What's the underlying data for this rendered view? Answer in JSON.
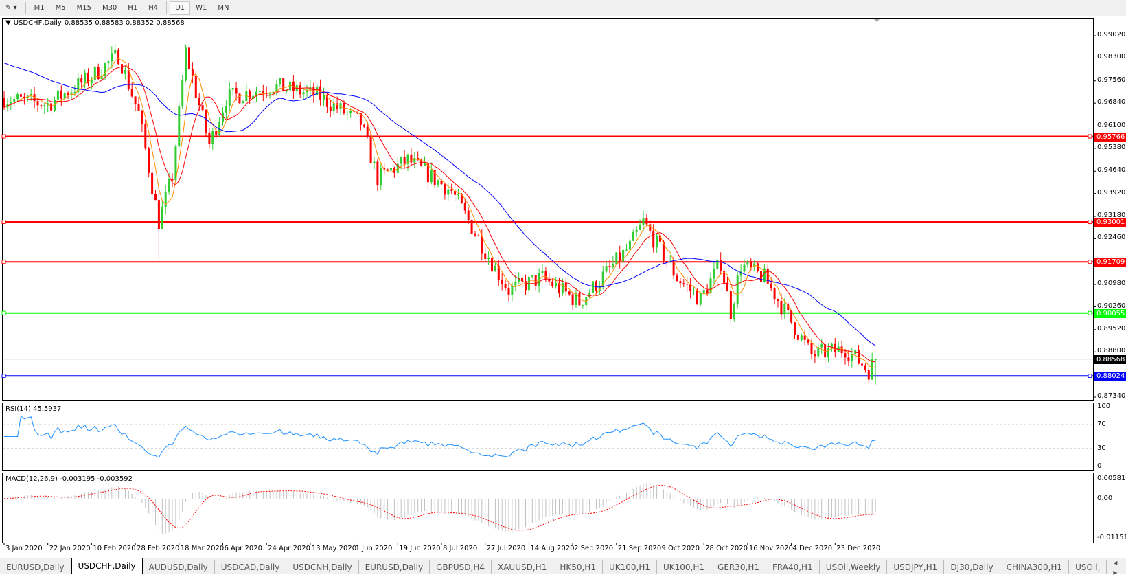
{
  "toolbar": {
    "timeframes": [
      "M1",
      "M5",
      "M15",
      "M30",
      "H1",
      "H4",
      "D1",
      "W1",
      "MN"
    ],
    "active": "D1"
  },
  "chart": {
    "symbol": "USDCHF,Daily",
    "ohlc": "0.88535 0.88583 0.88352 0.88568",
    "rsi_label": "RSI(14) 45.5937",
    "macd_label": "MACD(12,26,9) -0.003195 -0.003592"
  },
  "price_axis": [
    "0.99020",
    "0.98300",
    "0.97560",
    "0.96840",
    "0.96100",
    "0.95380",
    "0.94640",
    "0.93920",
    "0.93180",
    "0.92460",
    "0.90980",
    "0.90260",
    "0.89520",
    "0.88800",
    "0.87340"
  ],
  "rsi_axis": [
    "100",
    "70",
    "30",
    "0"
  ],
  "macd_axis": [
    "0.005818",
    "0.00",
    "-0.011514"
  ],
  "levels": [
    {
      "price": "0.95766",
      "color": "#ff0000"
    },
    {
      "price": "0.93001",
      "color": "#ff0000"
    },
    {
      "price": "0.91709",
      "color": "#ff0000"
    },
    {
      "price": "0.90055",
      "color": "#00ff00"
    },
    {
      "price": "0.88024",
      "color": "#0000ff"
    }
  ],
  "current_price": "0.88568",
  "x_axis": [
    "3 Jan 2020",
    "22 Jan 2020",
    "10 Feb 2020",
    "28 Feb 2020",
    "18 Mar 2020",
    "6 Apr 2020",
    "24 Apr 2020",
    "13 May 2020",
    "1 Jun 2020",
    "19 Jun 2020",
    "8 Jul 2020",
    "27 Jul 2020",
    "14 Aug 2020",
    "2 Sep 2020",
    "21 Sep 2020",
    "9 Oct 2020",
    "28 Oct 2020",
    "16 Nov 2020",
    "4 Dec 2020",
    "23 Dec 2020"
  ],
  "tabs": [
    "EURUSD,Daily",
    "USDCHF,Daily",
    "AUDUSD,Daily",
    "USDCAD,Daily",
    "USDCNH,Daily",
    "EURUSD,Daily",
    "GBPUSD,H4",
    "XAUUSD,H1",
    "HK50,H1",
    "UK100,H1",
    "UK100,H1",
    "GER30,H1",
    "FRA40,H1",
    "USOil,Weekly",
    "USDJPY,H1",
    "DJ30,Daily",
    "CHINA300,H1",
    "USOil,"
  ],
  "active_tab": "USDCHF,Daily",
  "chart_data": {
    "type": "candlestick",
    "price_path_approx": [
      [
        "2020-01-03",
        0.97
      ],
      [
        "2020-01-22",
        0.968
      ],
      [
        "2020-02-10",
        0.977
      ],
      [
        "2020-02-20",
        0.984
      ],
      [
        "2020-02-28",
        0.965
      ],
      [
        "2020-03-09",
        0.93
      ],
      [
        "2020-03-13",
        0.945
      ],
      [
        "2020-03-19",
        0.985
      ],
      [
        "2020-03-24",
        0.972
      ],
      [
        "2020-03-30",
        0.955
      ],
      [
        "2020-04-06",
        0.97
      ],
      [
        "2020-04-24",
        0.974
      ],
      [
        "2020-05-13",
        0.971
      ],
      [
        "2020-06-01",
        0.962
      ],
      [
        "2020-06-08",
        0.944
      ],
      [
        "2020-06-19",
        0.95
      ],
      [
        "2020-07-08",
        0.94
      ],
      [
        "2020-07-27",
        0.915
      ],
      [
        "2020-07-31",
        0.908
      ],
      [
        "2020-08-14",
        0.912
      ],
      [
        "2020-08-31",
        0.904
      ],
      [
        "2020-09-21",
        0.922
      ],
      [
        "2020-09-25",
        0.93
      ],
      [
        "2020-10-09",
        0.912
      ],
      [
        "2020-10-20",
        0.905
      ],
      [
        "2020-10-28",
        0.917
      ],
      [
        "2020-11-02",
        0.901
      ],
      [
        "2020-11-05",
        0.916
      ],
      [
        "2020-11-16",
        0.912
      ],
      [
        "2020-12-04",
        0.887
      ],
      [
        "2020-12-18",
        0.889
      ],
      [
        "2020-12-29",
        0.882
      ],
      [
        "2020-12-31",
        0.8857
      ]
    ],
    "indicators": [
      "MA fast (orange)",
      "MA medium (red)",
      "MA slow (blue)",
      "RSI(14)",
      "MACD(12,26,9)"
    ],
    "colors": {
      "bull": "#32cd32",
      "bear": "#ff0000",
      "rsi": "#1e90ff",
      "macd_signal": "#ff0000",
      "macd_hist": "#c0c0c0"
    }
  }
}
